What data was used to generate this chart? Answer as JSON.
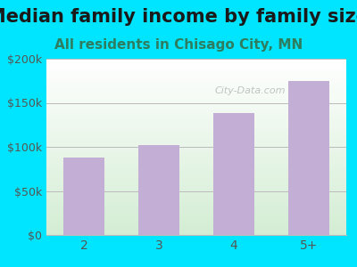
{
  "title": "Median family income by family size",
  "subtitle": "All residents in Chisago City, MN",
  "categories": [
    "2",
    "3",
    "4",
    "5+"
  ],
  "values": [
    88000,
    102000,
    138000,
    175000
  ],
  "bar_color": "#c3aed6",
  "background_color": "#00e5ff",
  "plot_bg_top": "#ffffff",
  "plot_bg_bottom": "#d4edda",
  "ylim": [
    0,
    200000
  ],
  "yticks": [
    0,
    50000,
    100000,
    150000,
    200000
  ],
  "ytick_labels": [
    "$0",
    "$50k",
    "$100k",
    "$150k",
    "$200k"
  ],
  "title_fontsize": 15,
  "subtitle_fontsize": 11,
  "title_color": "#1a1a1a",
  "subtitle_color": "#2e7d5e",
  "tick_color": "#555555",
  "grid_color": "#bbbbbb",
  "xlim": [
    -0.5,
    3.5
  ]
}
